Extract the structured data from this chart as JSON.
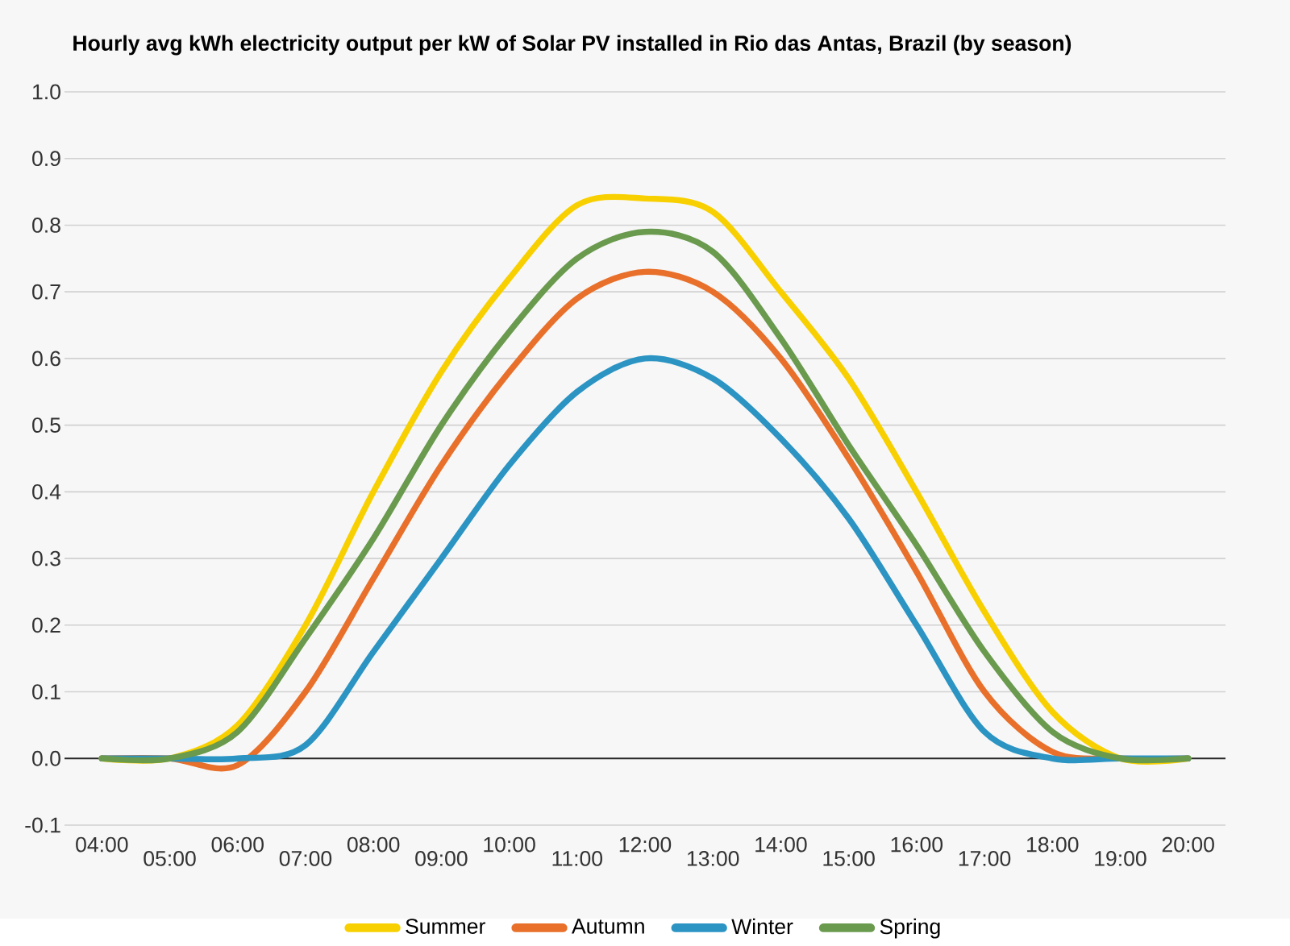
{
  "chart_data": {
    "type": "line",
    "title": "Hourly avg kWh electricity output per kW of Solar PV installed in Rio das Antas, Brazil (by season)",
    "categories": [
      "04:00",
      "05:00",
      "06:00",
      "07:00",
      "08:00",
      "09:00",
      "10:00",
      "11:00",
      "12:00",
      "13:00",
      "14:00",
      "15:00",
      "16:00",
      "17:00",
      "18:00",
      "19:00",
      "20:00"
    ],
    "series": [
      {
        "name": "Summer",
        "color": "#f8d000",
        "values": [
          0,
          0,
          0.05,
          0.2,
          0.4,
          0.58,
          0.72,
          0.83,
          0.84,
          0.82,
          0.7,
          0.57,
          0.4,
          0.22,
          0.07,
          0,
          0
        ]
      },
      {
        "name": "Autumn",
        "color": "#e8702a",
        "values": [
          0,
          0,
          -0.01,
          0.1,
          0.27,
          0.44,
          0.58,
          0.69,
          0.73,
          0.7,
          0.6,
          0.45,
          0.28,
          0.1,
          0.01,
          0,
          0
        ]
      },
      {
        "name": "Winter",
        "color": "#2b94c3",
        "values": [
          0,
          0,
          0,
          0.02,
          0.16,
          0.3,
          0.44,
          0.55,
          0.6,
          0.57,
          0.48,
          0.36,
          0.2,
          0.04,
          0,
          0,
          0
        ]
      },
      {
        "name": "Spring",
        "color": "#6a9a4e",
        "values": [
          0,
          0,
          0.04,
          0.18,
          0.33,
          0.5,
          0.64,
          0.75,
          0.79,
          0.76,
          0.63,
          0.47,
          0.32,
          0.16,
          0.04,
          0,
          0
        ]
      }
    ],
    "ylim": [
      -0.1,
      1.0
    ],
    "yticks": [
      {
        "value": -0.1,
        "label": "-0.1"
      },
      {
        "value": 0,
        "label": "0.0"
      },
      {
        "value": 0.1,
        "label": "0.1"
      },
      {
        "value": 0.2,
        "label": "0.2"
      },
      {
        "value": 0.3,
        "label": "0.3"
      },
      {
        "value": 0.4,
        "label": "0.4"
      },
      {
        "value": 0.5,
        "label": "0.5"
      },
      {
        "value": 0.6,
        "label": "0.6"
      },
      {
        "value": 0.7,
        "label": "0.7"
      },
      {
        "value": 0.8,
        "label": "0.8"
      },
      {
        "value": 0.9,
        "label": "0.9"
      },
      {
        "value": 1.0,
        "label": "1.0"
      }
    ],
    "grid": "y",
    "legend": "bottom",
    "marker": "none",
    "line_style": "solid"
  }
}
